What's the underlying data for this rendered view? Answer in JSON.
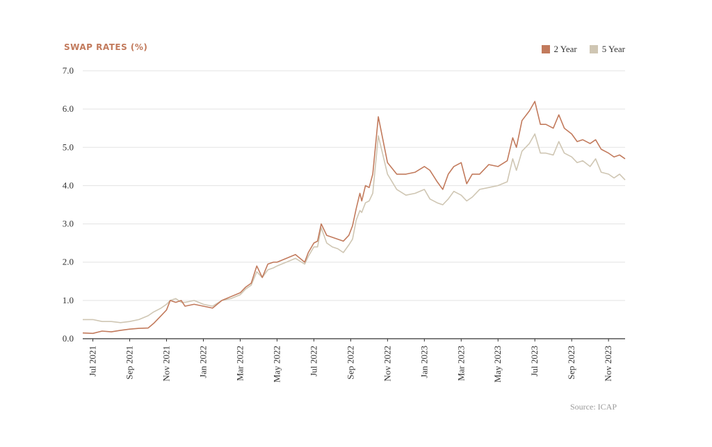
{
  "chart_data": {
    "type": "line",
    "title": "SWAP RATES (%)",
    "source": "Source: ICAP",
    "xlabel": "",
    "ylabel": "",
    "ylim": [
      0,
      7
    ],
    "y_ticks": [
      "0.0",
      "1.0",
      "2.0",
      "3.0",
      "4.0",
      "5.0",
      "6.0",
      "7.0"
    ],
    "x_ticks": [
      "Jul 2021",
      "Sep 2021",
      "Nov 2021",
      "Jan 2022",
      "Mar 2022",
      "May 2022",
      "Jul 2022",
      "Sep 2022",
      "Nov 2022",
      "Jan 2023",
      "Mar 2023",
      "May 2023",
      "Jul 2023",
      "Sep 2023",
      "Nov 2023"
    ],
    "x_tick_months": [
      1,
      3,
      5,
      7,
      9,
      11,
      13,
      15,
      17,
      19,
      21,
      23,
      25,
      27,
      29
    ],
    "x_range_months": [
      0.45,
      29.9
    ],
    "grid": true,
    "legend_position": "top-right",
    "colors": {
      "2 Year": "#c27a5c",
      "5 Year": "#cfc6b3"
    },
    "series": [
      {
        "name": "2 Year",
        "color": "#c27a5c",
        "x": [
          0.45,
          1.0,
          1.5,
          2.0,
          2.5,
          3.0,
          3.5,
          4.0,
          4.3,
          4.7,
          5.0,
          5.2,
          5.5,
          5.8,
          6.0,
          6.5,
          7.0,
          7.5,
          8.0,
          8.5,
          9.0,
          9.3,
          9.6,
          9.9,
          10.2,
          10.5,
          10.8,
          11.0,
          11.5,
          12.0,
          12.5,
          12.7,
          13.0,
          13.2,
          13.4,
          13.7,
          14.0,
          14.3,
          14.6,
          14.9,
          15.1,
          15.3,
          15.5,
          15.6,
          15.8,
          16.0,
          16.2,
          16.5,
          17.0,
          17.5,
          18.0,
          18.5,
          19.0,
          19.3,
          19.7,
          20.0,
          20.3,
          20.6,
          21.0,
          21.3,
          21.6,
          22.0,
          22.5,
          23.0,
          23.5,
          23.8,
          24.0,
          24.3,
          24.7,
          25.0,
          25.3,
          25.6,
          26.0,
          26.3,
          26.6,
          27.0,
          27.3,
          27.6,
          28.0,
          28.3,
          28.6,
          29.0,
          29.3,
          29.6,
          29.9
        ],
        "values": [
          0.15,
          0.14,
          0.2,
          0.18,
          0.22,
          0.25,
          0.27,
          0.28,
          0.4,
          0.6,
          0.75,
          1.0,
          0.95,
          1.0,
          0.85,
          0.9,
          0.85,
          0.8,
          1.0,
          1.1,
          1.2,
          1.35,
          1.45,
          1.9,
          1.6,
          1.95,
          2.0,
          2.0,
          2.1,
          2.2,
          2.0,
          2.25,
          2.5,
          2.55,
          3.0,
          2.7,
          2.65,
          2.6,
          2.55,
          2.7,
          2.95,
          3.4,
          3.8,
          3.6,
          4.0,
          3.95,
          4.3,
          5.8,
          4.6,
          4.3,
          4.3,
          4.35,
          4.5,
          4.4,
          4.1,
          3.9,
          4.3,
          4.5,
          4.6,
          4.05,
          4.3,
          4.3,
          4.55,
          4.5,
          4.65,
          5.25,
          5.0,
          5.7,
          5.95,
          6.2,
          5.6,
          5.6,
          5.5,
          5.85,
          5.5,
          5.35,
          5.15,
          5.2,
          5.1,
          5.2,
          4.95,
          4.85,
          4.75,
          4.8,
          4.7
        ]
      },
      {
        "name": "5 Year",
        "color": "#cfc6b3",
        "x": [
          0.45,
          1.0,
          1.5,
          2.0,
          2.5,
          3.0,
          3.5,
          4.0,
          4.3,
          4.7,
          5.0,
          5.2,
          5.5,
          5.8,
          6.0,
          6.5,
          7.0,
          7.5,
          8.0,
          8.5,
          9.0,
          9.3,
          9.6,
          9.9,
          10.2,
          10.5,
          10.8,
          11.0,
          11.5,
          12.0,
          12.5,
          12.7,
          13.0,
          13.2,
          13.4,
          13.7,
          14.0,
          14.3,
          14.6,
          14.9,
          15.1,
          15.3,
          15.5,
          15.6,
          15.8,
          16.0,
          16.2,
          16.5,
          17.0,
          17.5,
          18.0,
          18.5,
          19.0,
          19.3,
          19.7,
          20.0,
          20.3,
          20.6,
          21.0,
          21.3,
          21.6,
          22.0,
          22.5,
          23.0,
          23.5,
          23.8,
          24.0,
          24.3,
          24.7,
          25.0,
          25.3,
          25.6,
          26.0,
          26.3,
          26.6,
          27.0,
          27.3,
          27.6,
          28.0,
          28.3,
          28.6,
          29.0,
          29.3,
          29.6,
          29.9
        ],
        "values": [
          0.5,
          0.5,
          0.45,
          0.45,
          0.42,
          0.45,
          0.5,
          0.6,
          0.7,
          0.8,
          0.9,
          1.0,
          1.05,
          0.95,
          0.95,
          1.0,
          0.9,
          0.85,
          1.0,
          1.05,
          1.15,
          1.3,
          1.4,
          1.75,
          1.6,
          1.8,
          1.85,
          1.9,
          2.0,
          2.1,
          1.95,
          2.15,
          2.4,
          2.4,
          2.9,
          2.5,
          2.4,
          2.35,
          2.25,
          2.45,
          2.6,
          3.1,
          3.35,
          3.3,
          3.55,
          3.6,
          3.8,
          5.3,
          4.3,
          3.9,
          3.75,
          3.8,
          3.9,
          3.65,
          3.55,
          3.5,
          3.65,
          3.85,
          3.75,
          3.6,
          3.7,
          3.9,
          3.95,
          4.0,
          4.1,
          4.7,
          4.4,
          4.9,
          5.1,
          5.35,
          4.85,
          4.85,
          4.8,
          5.15,
          4.85,
          4.75,
          4.6,
          4.65,
          4.5,
          4.7,
          4.35,
          4.3,
          4.2,
          4.3,
          4.15
        ]
      }
    ]
  }
}
